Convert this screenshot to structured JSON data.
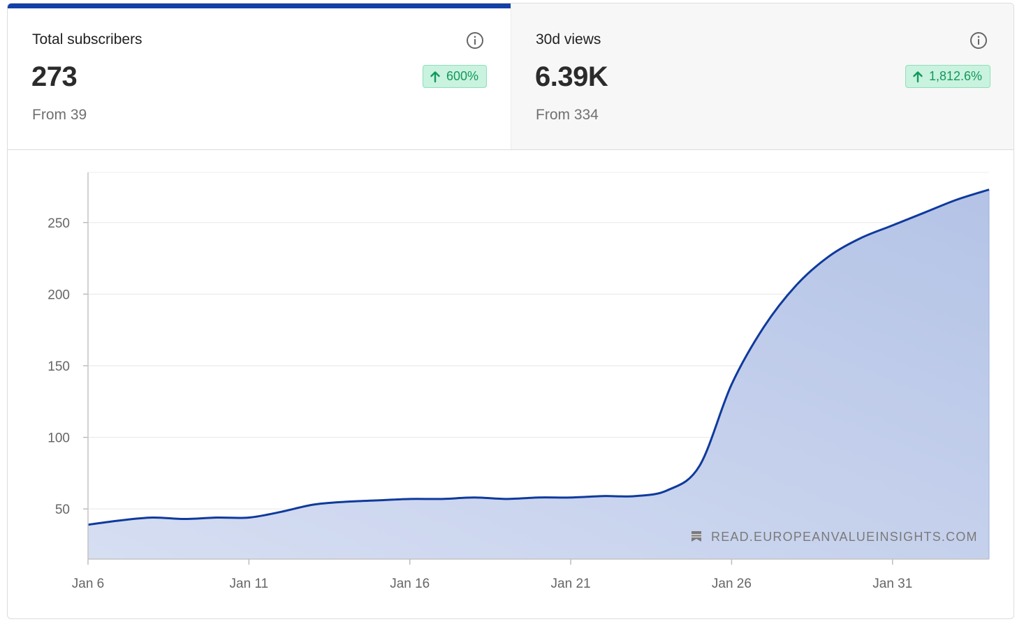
{
  "tabs": [
    {
      "label": "Total subscribers",
      "value": "273",
      "change": "600%",
      "from": "From 39",
      "selected": true
    },
    {
      "label": "30d views",
      "value": "6.39K",
      "change": "1,812.6%",
      "from": "From 334",
      "selected": false
    }
  ],
  "colors": {
    "accent": "#1340a6",
    "line": "#0f3a9c",
    "area": "#b8c6e6",
    "positive": "#12995a",
    "positive_bg": "#c9f2df"
  },
  "watermark": "READ.EUROPEANVALUEINSIGHTS.COM",
  "chart_data": {
    "type": "area",
    "title": "",
    "xlabel": "",
    "ylabel": "",
    "x": [
      "Jan 6",
      "Jan 7",
      "Jan 8",
      "Jan 9",
      "Jan 10",
      "Jan 11",
      "Jan 12",
      "Jan 13",
      "Jan 14",
      "Jan 15",
      "Jan 16",
      "Jan 17",
      "Jan 18",
      "Jan 19",
      "Jan 20",
      "Jan 21",
      "Jan 22",
      "Jan 23",
      "Jan 24",
      "Jan 25",
      "Jan 26",
      "Jan 27",
      "Jan 28",
      "Jan 29",
      "Jan 30",
      "Jan 31",
      "Feb 1",
      "Feb 2",
      "Feb 3"
    ],
    "series": [
      {
        "values": [
          39,
          42,
          44,
          43,
          44,
          44,
          48,
          53,
          55,
          56,
          57,
          57,
          58,
          57,
          58,
          58,
          59,
          59,
          63,
          80,
          137,
          177,
          206,
          226,
          239,
          248,
          257,
          266,
          273
        ]
      }
    ],
    "xticks": [
      "Jan 6",
      "Jan 11",
      "Jan 16",
      "Jan 21",
      "Jan 26",
      "Jan 31"
    ],
    "yticks": [
      50,
      100,
      150,
      200,
      250
    ],
    "ylim": [
      15,
      285
    ],
    "grid": true,
    "legend": "none"
  }
}
